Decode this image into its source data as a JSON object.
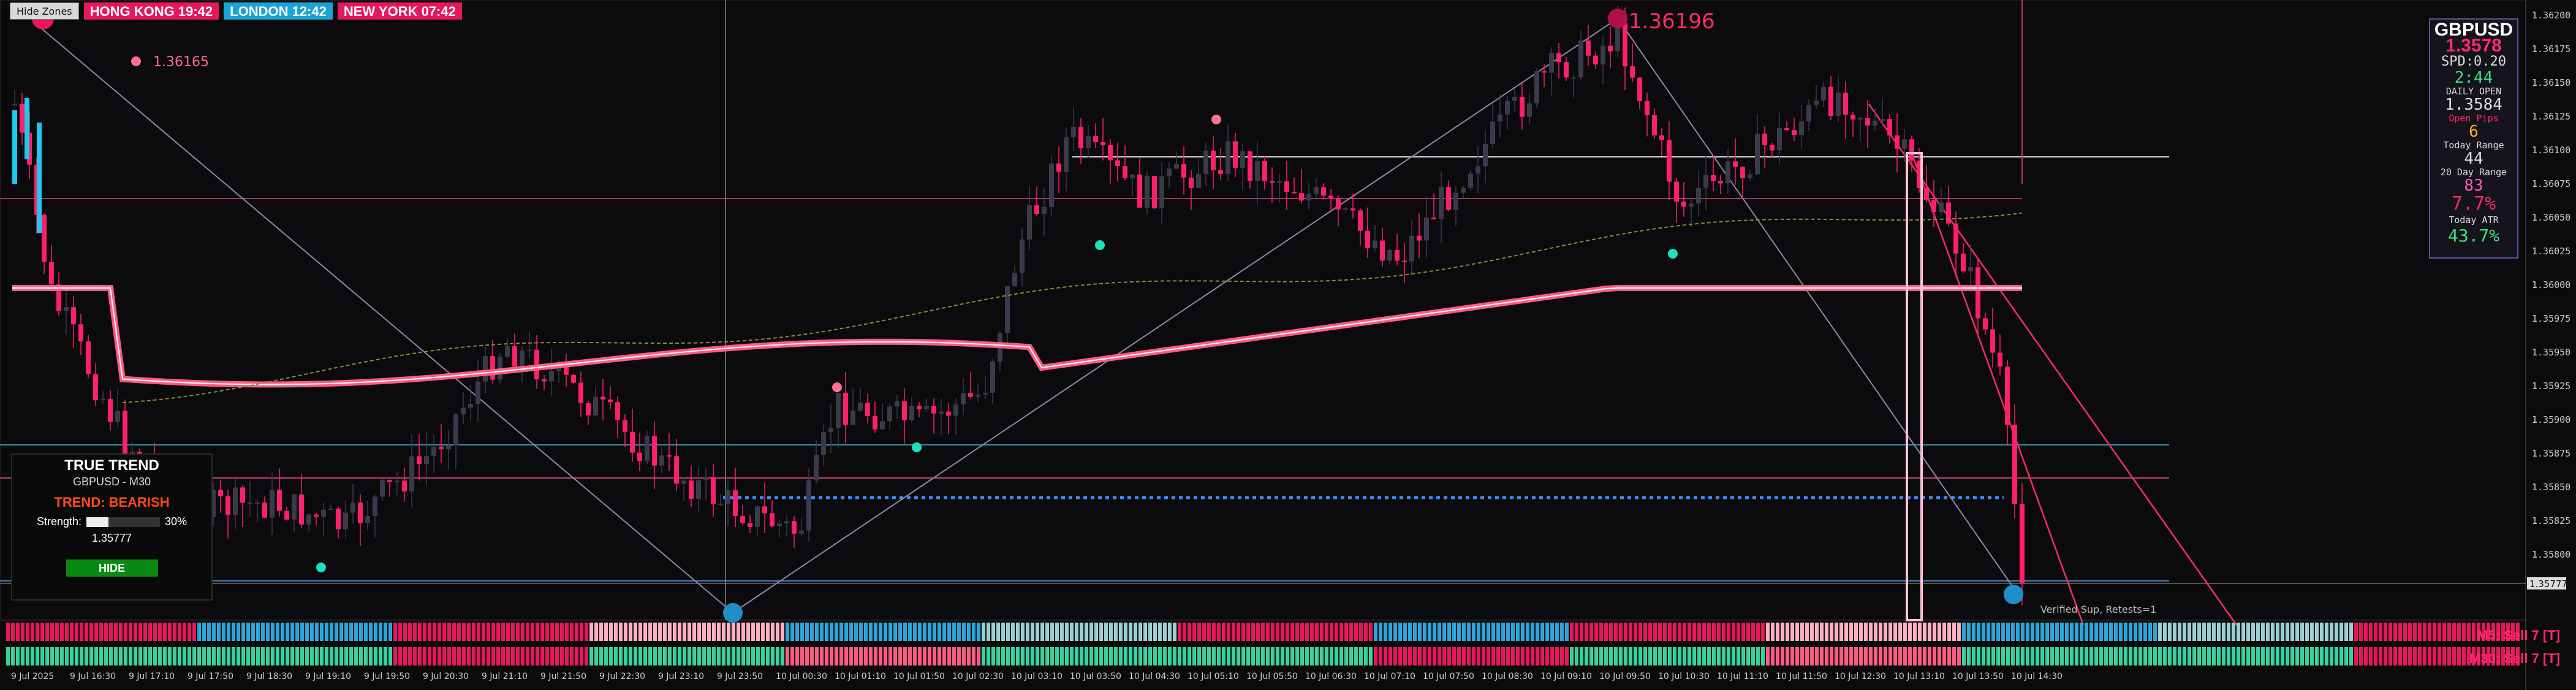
{
  "toolbar": {
    "hide_zones_label": "Hide Zones"
  },
  "sessions": [
    {
      "label": "HONG KONG 19:42",
      "color": "#e8175d"
    },
    {
      "label": "LONDON  12:42",
      "color": "#1ba3d6"
    },
    {
      "label": "NEW YORK 07:42",
      "color": "#e8175d"
    }
  ],
  "info": {
    "symbol": "GBPUSD",
    "price": "1.3578",
    "spread": "SPD:0.20",
    "time_left": "2:44",
    "daily_open_label": "DAILY OPEN",
    "daily_open": "1.3584",
    "open_pips_label": "Open Pips",
    "open_pips": "6",
    "today_range_label": "Today Range",
    "today_range": "44",
    "twenty_day_range_label": "20 Day Range",
    "twenty_day_range": "83",
    "pct": "7.7%",
    "today_atr_label": "Today ATR",
    "today_atr": "43.7%"
  },
  "true_trend": {
    "title": "TRUE TREND",
    "subtitle": "GBPUSD - M30",
    "trend": "TREND: BEARISH",
    "strength_label": "Strength:",
    "strength_value": 0.3,
    "strength_pct": "30%",
    "price": "1.35777",
    "hide_label": "HIDE"
  },
  "annotations": {
    "high_label": "1.36196",
    "left_high_label": "1.36165",
    "verified_sup": "Verified Sup, Retests=1",
    "price_tag": "1.35777"
  },
  "strips": {
    "m5": {
      "label": "M5: Sell 7 [T]",
      "color": "#ff2a6d"
    },
    "m30": {
      "label": "M30: Sell 7 [T]",
      "color": "#ff2a6d"
    }
  },
  "price_axis": [
    "1.36200",
    "1.36175",
    "1.36150",
    "1.36125",
    "1.36100",
    "1.36075",
    "1.36050",
    "1.36025",
    "1.36000",
    "1.35975",
    "1.35950",
    "1.35925",
    "1.35900",
    "1.35875",
    "1.35850",
    "1.35825",
    "1.35800"
  ],
  "time_axis": [
    "9 Jul 2025",
    "9 Jul 16:30",
    "9 Jul 17:10",
    "9 Jul 17:50",
    "9 Jul 18:30",
    "9 Jul 19:10",
    "9 Jul 19:50",
    "9 Jul 20:30",
    "9 Jul 21:10",
    "9 Jul 21:50",
    "9 Jul 22:30",
    "9 Jul 23:10",
    "9 Jul 23:50",
    "10 Jul 00:30",
    "10 Jul 01:10",
    "10 Jul 01:50",
    "10 Jul 02:30",
    "10 Jul 03:10",
    "10 Jul 03:50",
    "10 Jul 04:30",
    "10 Jul 05:10",
    "10 Jul 05:50",
    "10 Jul 06:30",
    "10 Jul 07:10",
    "10 Jul 07:50",
    "10 Jul 08:30",
    "10 Jul 09:10",
    "10 Jul 09:50",
    "10 Jul 10:30",
    "10 Jul 11:10",
    "10 Jul 11:50",
    "10 Jul 12:30",
    "10 Jul 13:10",
    "10 Jul 13:50",
    "10 Jul 14:30"
  ],
  "colors": {
    "bull": "#3a3a4e",
    "bear": "#ff1f6b",
    "ma": "#ff5a86",
    "ma_core": "#ffffff",
    "accent": "#e8175d"
  }
}
